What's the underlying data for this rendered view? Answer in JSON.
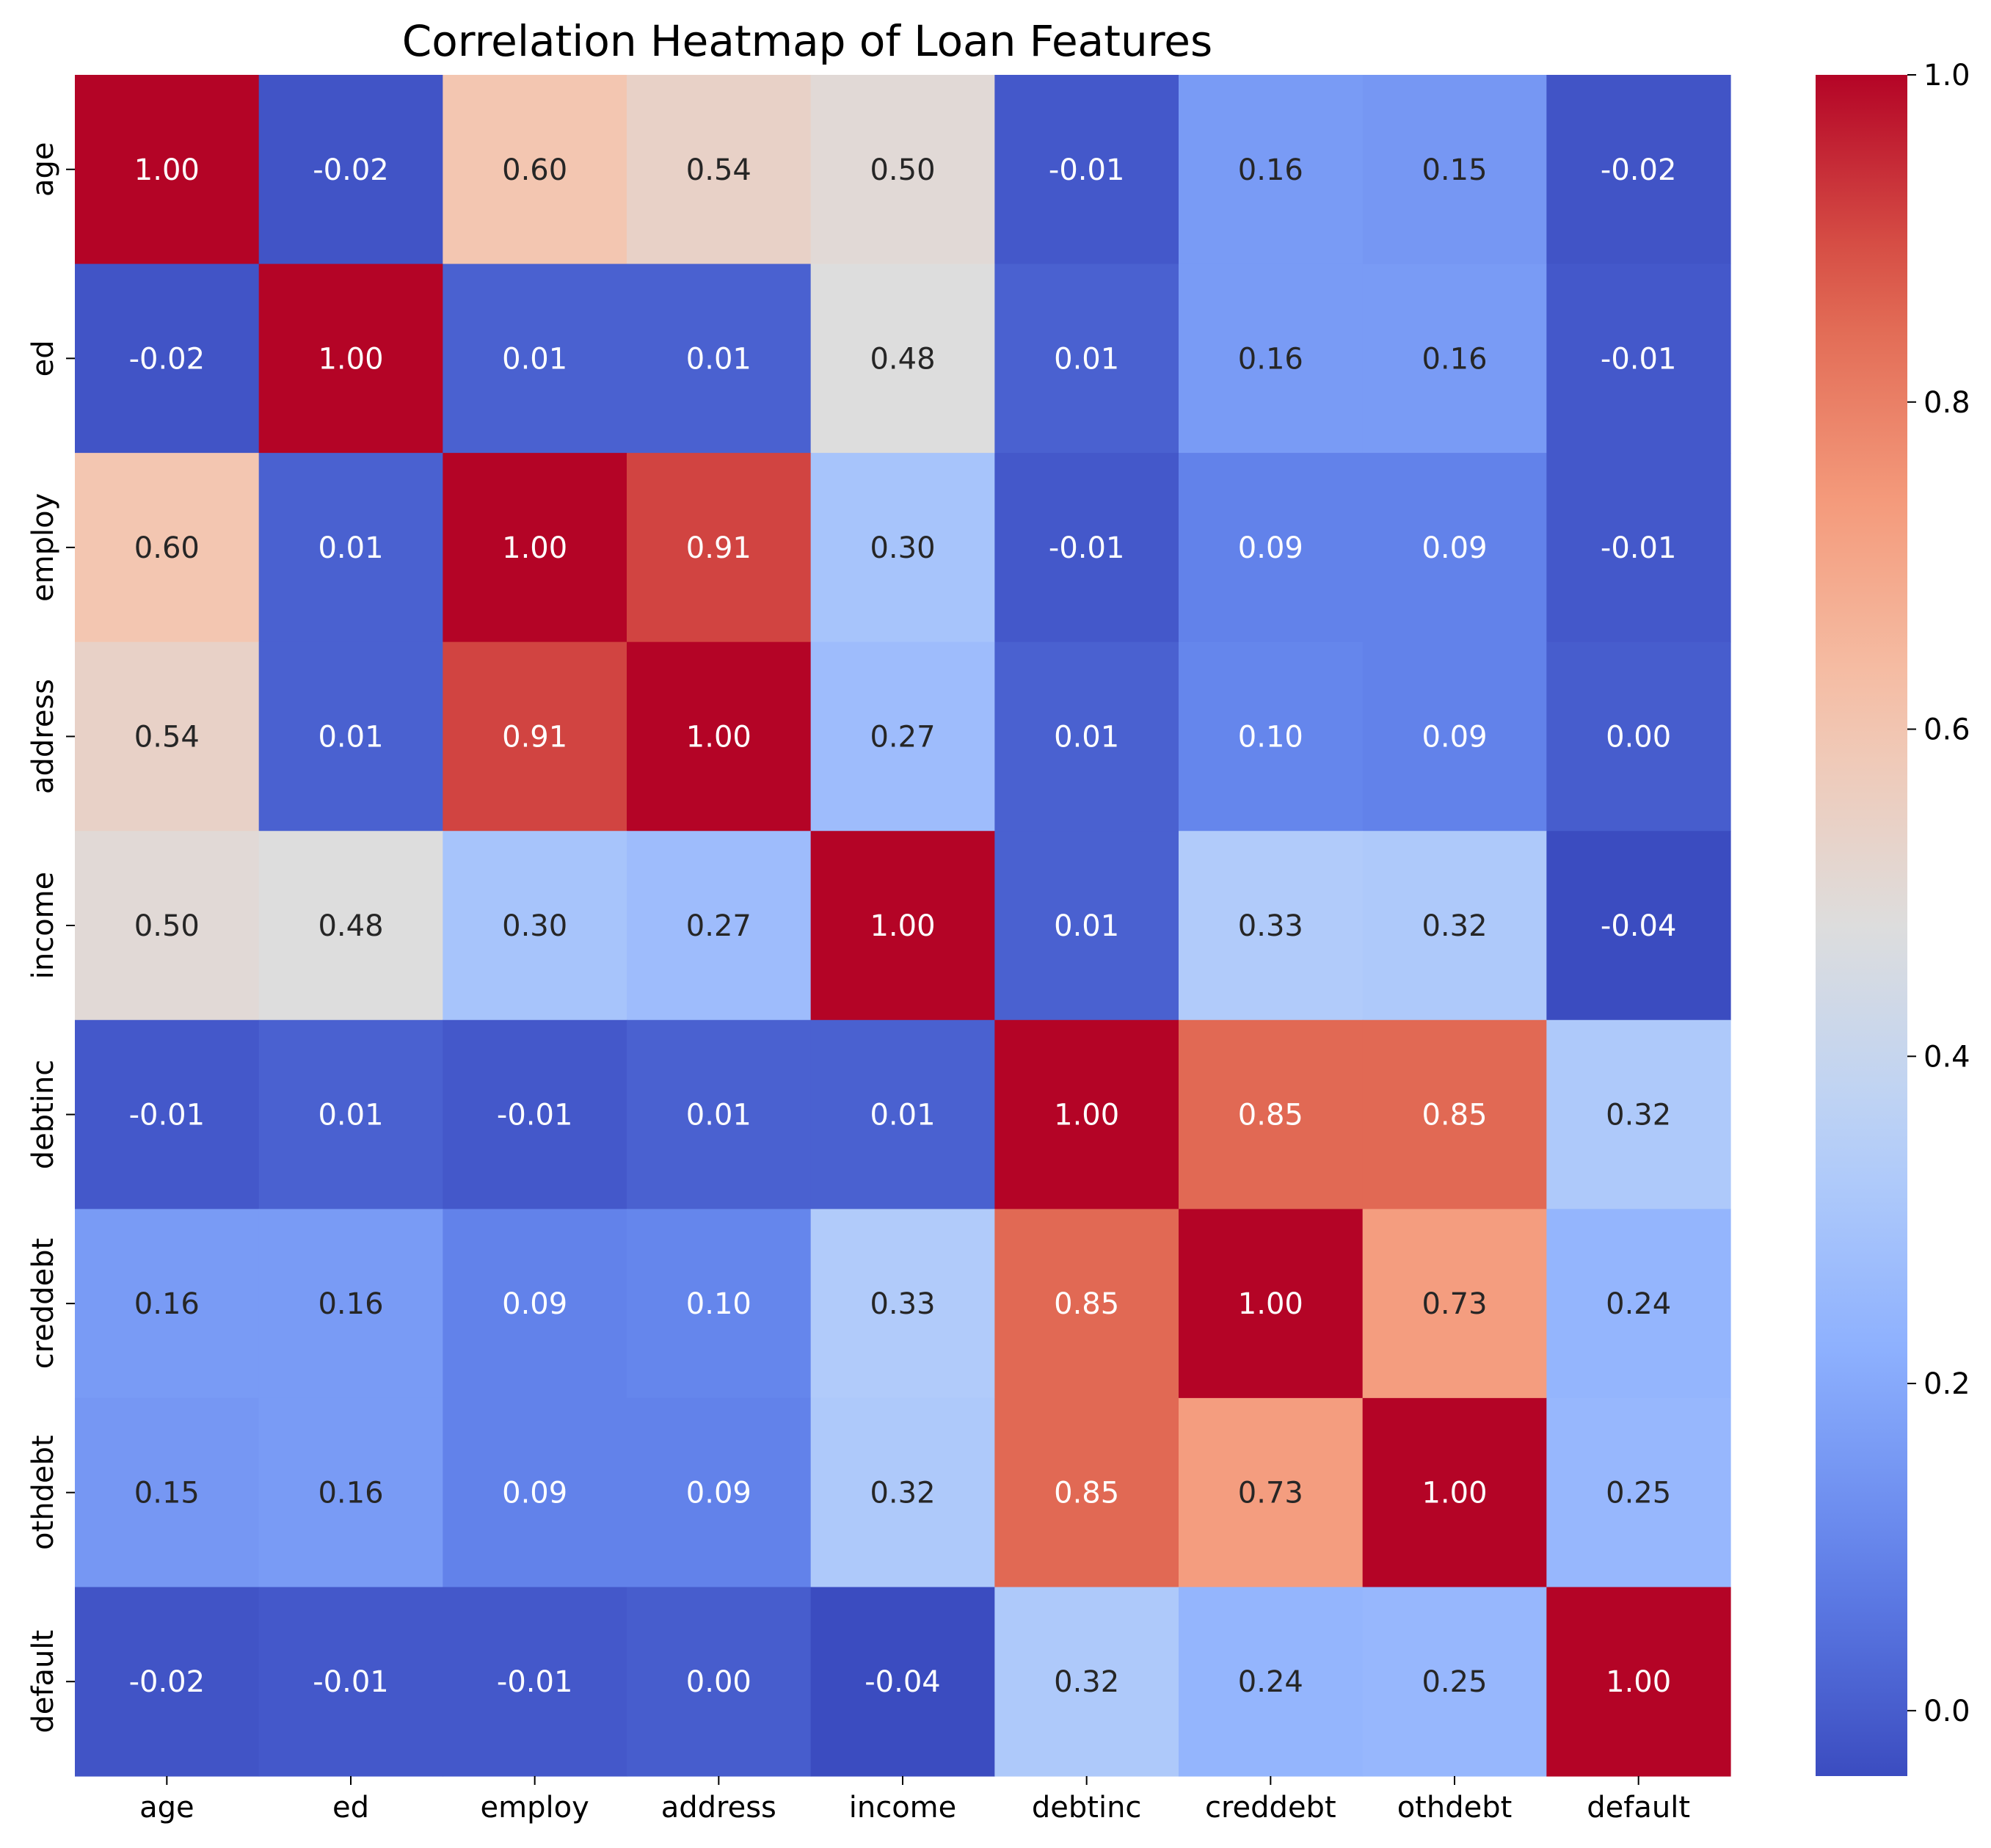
{
  "chart_data": {
    "type": "heatmap",
    "title": "Correlation Heatmap of Loan Features",
    "xlabel": "",
    "ylabel": "",
    "x_categories": [
      "age",
      "ed",
      "employ",
      "address",
      "income",
      "debtinc",
      "creddebt",
      "othdebt",
      "default"
    ],
    "y_categories": [
      "age",
      "ed",
      "employ",
      "address",
      "income",
      "debtinc",
      "creddebt",
      "othdebt",
      "default"
    ],
    "values": [
      [
        1.0,
        -0.02,
        0.6,
        0.54,
        0.5,
        -0.01,
        0.16,
        0.15,
        -0.02
      ],
      [
        -0.02,
        1.0,
        0.01,
        0.01,
        0.48,
        0.01,
        0.16,
        0.16,
        -0.01
      ],
      [
        0.6,
        0.01,
        1.0,
        0.91,
        0.3,
        -0.01,
        0.09,
        0.09,
        -0.01
      ],
      [
        0.54,
        0.01,
        0.91,
        1.0,
        0.27,
        0.01,
        0.1,
        0.09,
        0.0
      ],
      [
        0.5,
        0.48,
        0.3,
        0.27,
        1.0,
        0.01,
        0.33,
        0.32,
        -0.04
      ],
      [
        -0.01,
        0.01,
        -0.01,
        0.01,
        0.01,
        1.0,
        0.85,
        0.85,
        0.32
      ],
      [
        0.16,
        0.16,
        0.09,
        0.1,
        0.33,
        0.85,
        1.0,
        0.73,
        0.24
      ],
      [
        0.15,
        0.16,
        0.09,
        0.09,
        0.32,
        0.85,
        0.73,
        1.0,
        0.25
      ],
      [
        -0.02,
        -0.01,
        -0.01,
        0.0,
        -0.04,
        0.32,
        0.24,
        0.25,
        1.0
      ]
    ],
    "value_format": "2 decimals",
    "colormap": "coolwarm",
    "vmin": -0.04,
    "vmax": 1.0,
    "colorbar_ticks": [
      "0.0",
      "0.2",
      "0.4",
      "0.6",
      "0.8",
      "1.0"
    ],
    "colorbar_tick_values": [
      0.0,
      0.2,
      0.4,
      0.6,
      0.8,
      1.0
    ],
    "grid": false,
    "colorbar_position": "right"
  }
}
